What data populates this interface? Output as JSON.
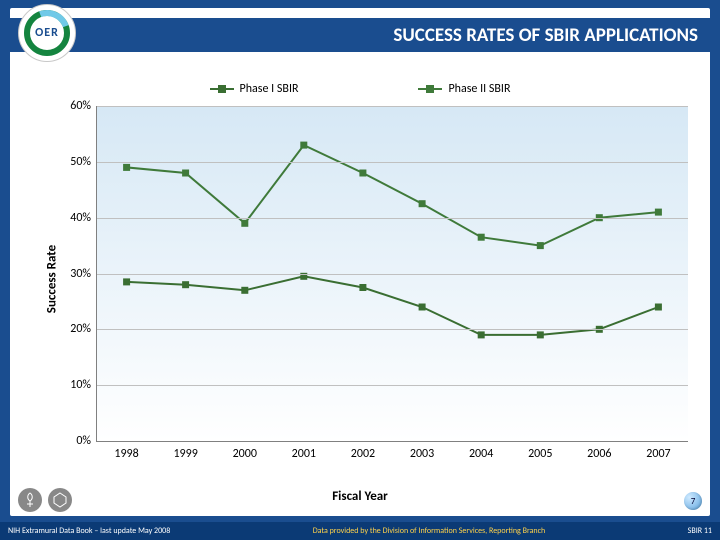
{
  "header": {
    "badge_text": "OER",
    "title": "SUCCESS RATES OF SBIR APPLICATIONS"
  },
  "chart": {
    "type": "line",
    "x_label": "Fiscal Year",
    "y_label": "Success Rate",
    "background_gradient_top": "#d6e8f5",
    "background_gradient_bottom": "#ffffff",
    "grid_color": "#c0c0c0",
    "axis_color": "#808080",
    "categories": [
      "1998",
      "1999",
      "2000",
      "2001",
      "2002",
      "2003",
      "2004",
      "2005",
      "2006",
      "2007"
    ],
    "y_ticks": {
      "min": 0,
      "max": 60,
      "step": 10,
      "labels": [
        "0%",
        "10%",
        "20%",
        "30%",
        "40%",
        "50%",
        "60%"
      ]
    },
    "series": [
      {
        "name": "Phase I SBIR",
        "color": "#3a6e32",
        "marker": "square",
        "marker_size": 7,
        "line_width": 2,
        "values": [
          28.5,
          28,
          27,
          29.5,
          27.5,
          24,
          19,
          19,
          20,
          24
        ]
      },
      {
        "name": "Phase II SBIR",
        "color": "#3f7a3a",
        "marker": "square",
        "marker_size": 7,
        "line_width": 2,
        "values": [
          49,
          48,
          39,
          53,
          48,
          42.5,
          36.5,
          35,
          40,
          41
        ]
      }
    ],
    "legend_fontsize": 12,
    "tick_fontsize": 12,
    "label_fontsize": 13
  },
  "footer": {
    "left": "NIH Extramural Data Book – last update May 2008",
    "mid": "Data provided by the Division of Information Services, Reporting Branch",
    "right": "SBIR 11"
  },
  "page_number": "7"
}
